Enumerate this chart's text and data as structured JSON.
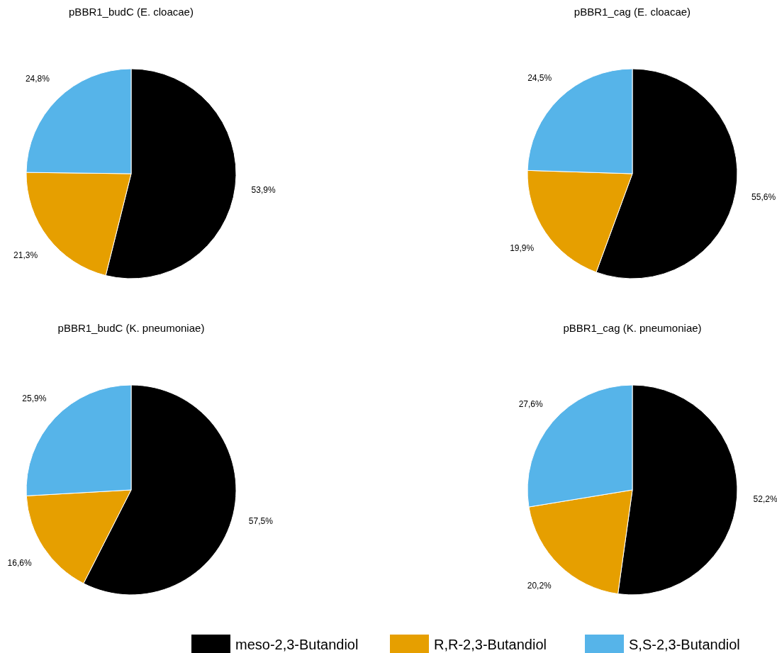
{
  "chart_data": [
    {
      "type": "pie",
      "title": "pBBR1_budC (E. cloacae)",
      "categories": [
        "meso-2,3-Butandiol",
        "R,R-2,3-Butandiol",
        "S,S-2,3-Butandiol"
      ],
      "values": [
        53.9,
        21.3,
        24.8
      ],
      "value_labels": [
        "53,9%",
        "21,3%",
        "24,8%"
      ],
      "colors": [
        "#000000",
        "#e69f00",
        "#56b4e9"
      ],
      "legend": "bottom"
    },
    {
      "type": "pie",
      "title": "pBBR1_cag (E. cloacae)",
      "categories": [
        null,
        null,
        null
      ],
      "values": [
        55.6,
        19.9,
        24.5
      ],
      "value_labels": [
        "55,6%",
        "19,9%",
        "24,5%"
      ],
      "colors": [
        "#000000",
        "#e69f00",
        "#56b4e9"
      ]
    },
    {
      "type": "pie",
      "title": "pBBR1_budC (K. pneumoniae)",
      "categories": [
        null,
        null,
        null
      ],
      "values": [
        57.5,
        16.6,
        25.9
      ],
      "value_labels": [
        "57,5%",
        "16,6%",
        "25,9%"
      ],
      "colors": [
        "#000000",
        "#e69f00",
        "#56b4e9"
      ]
    },
    {
      "type": "pie",
      "title": "pBBR1_cag (K. pneumoniae)",
      "categories": [
        null,
        null,
        null
      ],
      "values": [
        52.2,
        20.2,
        27.6
      ],
      "value_labels": [
        "52,2%",
        "20,2%",
        "27,6%"
      ],
      "colors": [
        "#000000",
        "#e69f00",
        "#56b4e9"
      ]
    }
  ]
}
